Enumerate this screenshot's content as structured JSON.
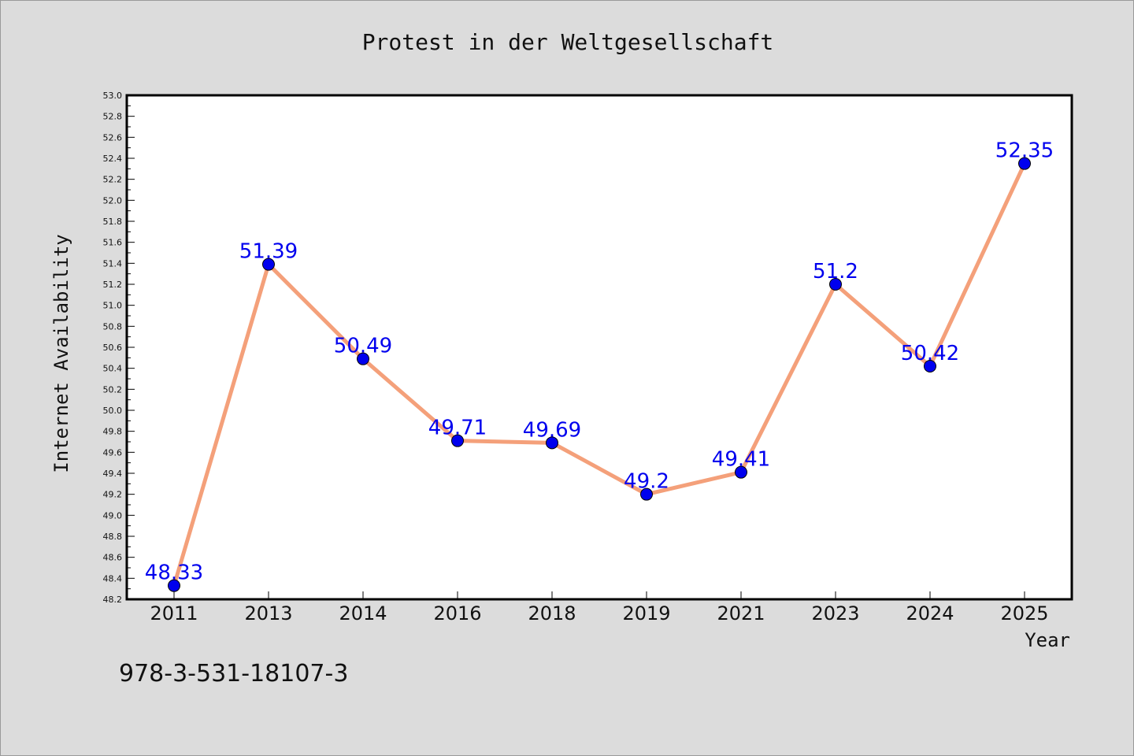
{
  "chart_data": {
    "type": "line",
    "title": "Protest in der Weltgesellschaft",
    "xlabel": "Year",
    "ylabel": "Internet Availability",
    "categories": [
      "2011",
      "2013",
      "2014",
      "2016",
      "2018",
      "2019",
      "2021",
      "2023",
      "2024",
      "2025"
    ],
    "series": [
      {
        "values": [
          48.33,
          51.39,
          50.49,
          49.71,
          49.69,
          49.2,
          49.41,
          51.2,
          50.42,
          52.35
        ]
      }
    ],
    "data_labels": [
      "48.33",
      "51.39",
      "50.49",
      "49.71",
      "49.69",
      "49.2",
      "49.41",
      "51.2",
      "50.42",
      "52.35"
    ],
    "ylim": [
      48.2,
      53.0
    ],
    "y_ticks": [
      "48.2",
      "48.4",
      "48.6",
      "48.8",
      "49.0",
      "49.2",
      "49.4",
      "49.6",
      "49.8",
      "50.0",
      "50.2",
      "50.4",
      "50.6",
      "50.8",
      "51.0",
      "51.2",
      "51.4",
      "51.6",
      "51.8",
      "52.0",
      "52.2",
      "52.4",
      "52.6",
      "52.8",
      "53.0"
    ],
    "grid": false,
    "legend": "none",
    "colors": {
      "line": "#f4a07a",
      "marker": "#0000ee",
      "data_label": "#0000ee",
      "plot_background": "#ffffff",
      "figure_background": "#dcdcdc"
    }
  },
  "footer_text": "978-3-531-18107-3"
}
